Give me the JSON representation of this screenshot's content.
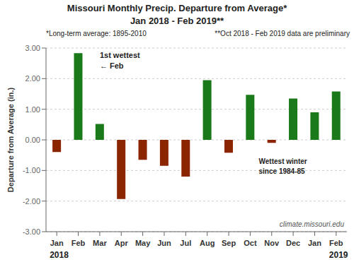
{
  "chart_data": {
    "type": "bar",
    "title": "Missouri Monthly Precip. Departure from Average*",
    "subtitle": "Jan 2018 - Feb 2019**",
    "ylabel": "Departure from Average (in.)",
    "categories": [
      "Jan",
      "Feb",
      "Mar",
      "Apr",
      "May",
      "Jun",
      "Jul",
      "Aug",
      "Sep",
      "Oct",
      "Nov",
      "Dec",
      "Jan",
      "Feb"
    ],
    "values": [
      -0.4,
      2.83,
      0.52,
      -1.93,
      -0.65,
      -0.85,
      -1.2,
      1.95,
      -0.42,
      1.47,
      -0.1,
      1.35,
      0.9,
      1.58
    ],
    "colors": [
      "#8B2500",
      "#1a7a1a",
      "#1a7a1a",
      "#8B2500",
      "#8B2500",
      "#8B2500",
      "#8B2500",
      "#1a7a1a",
      "#8B2500",
      "#1a7a1a",
      "#8B2500",
      "#1a7a1a",
      "#1a7a1a",
      "#1a7a1a"
    ],
    "ylim": [
      -3.0,
      3.0
    ],
    "yticks": [
      {
        "value": -3.0,
        "label": "-3.00"
      },
      {
        "value": -2.0,
        "label": "-2.00"
      },
      {
        "value": -1.0,
        "label": "-1.00"
      },
      {
        "value": 0.0,
        "label": "0.00"
      },
      {
        "value": 1.0,
        "label": "1.00"
      },
      {
        "value": 2.0,
        "label": "2.00"
      },
      {
        "value": 3.0,
        "label": "3.00"
      }
    ],
    "grid": true,
    "annotations": [
      "1st wettest",
      "←  Feb",
      "Wettest winter",
      "since 1984-85",
      "2018",
      "2019",
      "climate.missouri.edu",
      "*Long-term average: 1895-2010",
      "**Oct 2018 - Feb 2019 data are preliminary"
    ]
  }
}
